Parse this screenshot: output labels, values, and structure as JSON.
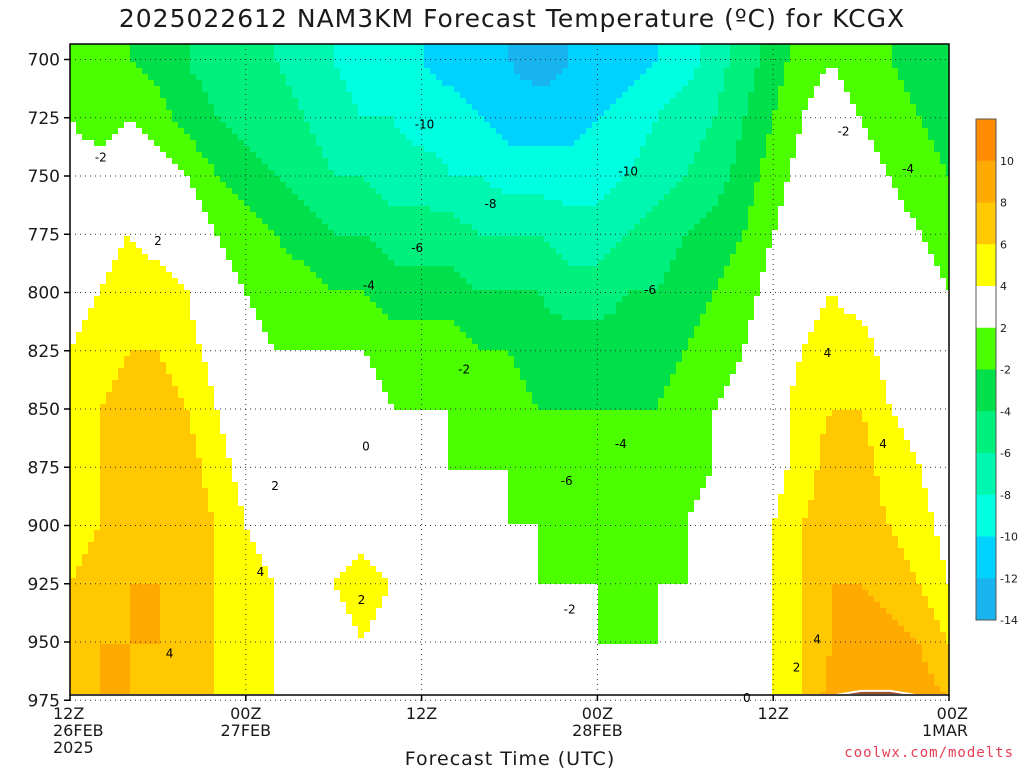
{
  "chart_data": {
    "type": "heatmap",
    "title": "2025022612 NAM3KM Forecast Temperature (ºC) for KCGX",
    "xlabel": "Forecast Time (UTC)",
    "ylabel": "",
    "y_axis": {
      "inverted": true,
      "ylim": [
        988,
        695
      ],
      "ticks": [
        700,
        725,
        750,
        775,
        800,
        825,
        850,
        875,
        900,
        925,
        950,
        975
      ],
      "tick_labels": [
        "700",
        "725",
        "750",
        "775",
        "800",
        "825",
        "850",
        "875",
        "900",
        "925",
        "950",
        "975"
      ]
    },
    "x_axis": {
      "xlim": [
        0,
        36
      ],
      "ticks": [
        {
          "hour": 0,
          "lines": [
            "12Z",
            "26FEB",
            "2025"
          ]
        },
        {
          "hour": 12,
          "lines": [
            "00Z",
            "27FEB"
          ]
        },
        {
          "hour": 24,
          "lines": [
            "12Z"
          ]
        },
        {
          "hour": 36,
          "lines": [
            "00Z",
            "28FEB"
          ]
        },
        {
          "hour": 48,
          "lines": [
            "12Z"
          ]
        },
        {
          "hour": 60,
          "lines": [
            "00Z",
            "1MAR"
          ]
        }
      ]
    },
    "grid": "dotted",
    "colorbar": {
      "placement": "right",
      "levels": [
        14,
        12,
        10,
        8,
        6,
        4,
        2,
        -2,
        -4,
        -6,
        -8,
        -10,
        -12,
        -14
      ],
      "labels": [
        "10",
        "8",
        "6",
        "4",
        "2",
        "-2",
        "-4",
        "-6",
        "-8",
        "-10",
        "-12",
        "-14"
      ],
      "bands": [
        {
          "low": 10,
          "high": 14,
          "color": "#ff8c00"
        },
        {
          "low": 6,
          "high": 10,
          "color": "#ffaa00"
        },
        {
          "low": 4,
          "high": 6,
          "color": "#ffc800"
        },
        {
          "low": 2,
          "high": 4,
          "color": "#ffff00"
        },
        {
          "low": -2,
          "high": 2,
          "color": "#ffffff"
        },
        {
          "low": -4,
          "high": -2,
          "color": "#4cff00"
        },
        {
          "low": -6,
          "high": -4,
          "color": "#00e04a"
        },
        {
          "low": -8,
          "high": -6,
          "color": "#00f07e"
        },
        {
          "low": -10,
          "high": -8,
          "color": "#00f7b0"
        },
        {
          "low": -12,
          "high": -10,
          "color": "#00ffe0"
        },
        {
          "low": -14,
          "high": -12,
          "color": "#00d2ff"
        },
        {
          "low": -18,
          "high": -14,
          "color": "#18b4f0"
        }
      ]
    },
    "temperature_field": {
      "units": "ºC",
      "hours": [
        0,
        2,
        4,
        6,
        8,
        10,
        12,
        14,
        16,
        18,
        20,
        22,
        24,
        26,
        28,
        30,
        32,
        34,
        36,
        38,
        40,
        42,
        44,
        46,
        48,
        50,
        52,
        54,
        56,
        58,
        60
      ],
      "pressures": [
        700,
        725,
        750,
        775,
        800,
        825,
        850,
        875,
        900,
        925,
        950,
        975
      ],
      "values": [
        [
          -3,
          -4,
          -4,
          -5,
          -6,
          -7,
          -8,
          -8,
          -9,
          -10,
          -11,
          -12,
          -12,
          -13,
          -14,
          -14,
          -15,
          -14,
          -14,
          -13,
          -12,
          -11,
          -9,
          -7,
          -5,
          -3,
          -2,
          -3,
          -4,
          -5,
          -6
        ],
        [
          -2,
          -3,
          -2,
          -3,
          -5,
          -6,
          -7,
          -7,
          -8,
          -9,
          -10,
          -10,
          -11,
          -11,
          -12,
          -13,
          -13,
          -13,
          -12,
          -11,
          -10,
          -9,
          -8,
          -6,
          -4,
          -2,
          -1,
          -2,
          -3,
          -4,
          -5
        ],
        [
          -1,
          -1,
          0,
          -1,
          -2,
          -4,
          -5,
          -6,
          -7,
          -8,
          -8,
          -9,
          -9,
          -10,
          -10,
          -11,
          -11,
          -11,
          -11,
          -10,
          -9,
          -8,
          -7,
          -5,
          -3,
          -1,
          0,
          -1,
          -2,
          -3,
          -4
        ],
        [
          0,
          1,
          2,
          1,
          0,
          -2,
          -3,
          -4,
          -5,
          -6,
          -6,
          -7,
          -7,
          -7,
          -8,
          -8,
          -8,
          -9,
          -9,
          -8,
          -7,
          -6,
          -5,
          -4,
          -2,
          0,
          0,
          0,
          -1,
          -2,
          -3
        ],
        [
          1,
          2,
          3,
          3,
          2,
          -1,
          -2,
          -3,
          -3,
          -4,
          -4,
          -5,
          -5,
          -5,
          -6,
          -6,
          -6,
          -7,
          -7,
          -6,
          -6,
          -5,
          -4,
          -3,
          -1,
          1,
          2,
          1,
          0,
          -1,
          -2
        ],
        [
          2,
          3,
          4,
          4,
          3,
          1,
          -1,
          -2,
          -2,
          -2,
          -2,
          -3,
          -3,
          -3,
          -4,
          -4,
          -5,
          -5,
          -5,
          -5,
          -5,
          -4,
          -3,
          -2,
          0,
          2,
          3,
          3,
          1,
          0,
          -1
        ],
        [
          2,
          4,
          5,
          5,
          4,
          2,
          0,
          -1,
          -1,
          -1,
          -1,
          -2,
          -2,
          -2,
          -3,
          -3,
          -4,
          -4,
          -4,
          -4,
          -4,
          -3,
          -2,
          -1,
          1,
          3,
          4,
          4,
          2,
          1,
          -1
        ],
        [
          3,
          4,
          5,
          6,
          5,
          3,
          1,
          0,
          0,
          0,
          0,
          -1,
          -1,
          -2,
          -2,
          -2,
          -3,
          -3,
          -4,
          -4,
          -3,
          -3,
          -2,
          0,
          1,
          3,
          5,
          5,
          3,
          2,
          0
        ],
        [
          3,
          4,
          5,
          6,
          5,
          4,
          2,
          1,
          1,
          1,
          1,
          0,
          0,
          -1,
          -1,
          -2,
          -2,
          -3,
          -3,
          -3,
          -3,
          -2,
          -1,
          0,
          2,
          4,
          5,
          5,
          4,
          3,
          1
        ],
        [
          4,
          5,
          6,
          6,
          5,
          4,
          3,
          2,
          1,
          2,
          3,
          2,
          1,
          0,
          -1,
          -1,
          -2,
          -2,
          -2,
          -3,
          -2,
          -2,
          -1,
          0,
          2,
          4,
          6,
          6,
          5,
          4,
          2
        ],
        [
          5,
          6,
          6,
          6,
          5,
          4,
          3,
          2,
          1,
          1,
          2,
          1,
          0,
          0,
          0,
          -1,
          -1,
          -1,
          -2,
          -2,
          -2,
          -1,
          0,
          1,
          2,
          4,
          6,
          7,
          7,
          6,
          4
        ],
        [
          5,
          6,
          6,
          5,
          4,
          4,
          3,
          2,
          1,
          1,
          1,
          1,
          1,
          0,
          0,
          0,
          0,
          0,
          -1,
          -1,
          -1,
          0,
          0,
          1,
          2,
          4,
          7,
          9,
          8,
          7,
          6
        ]
      ]
    },
    "ground": {
      "color": "#a0522d",
      "hours": [
        0,
        3,
        6,
        9,
        12,
        15,
        18,
        21,
        24,
        27,
        30,
        33,
        36,
        38,
        40,
        42,
        44,
        46,
        48,
        50,
        52,
        54,
        56,
        58,
        60
      ],
      "surface_pressure": [
        980,
        979,
        978,
        978,
        979,
        980,
        980,
        980,
        980,
        981,
        981,
        983,
        984,
        985,
        984,
        983,
        983,
        982,
        980,
        977,
        973,
        971,
        971,
        973,
        975
      ]
    },
    "contour_labels": [
      {
        "text": "-2",
        "hour": 2.1,
        "p": 742
      },
      {
        "text": "-10",
        "hour": 24.2,
        "p": 728
      },
      {
        "text": "-10",
        "hour": 38.1,
        "p": 748
      },
      {
        "text": "-8",
        "hour": 28.7,
        "p": 762
      },
      {
        "text": "-6",
        "hour": 23.7,
        "p": 781
      },
      {
        "text": "-4",
        "hour": 20.4,
        "p": 797
      },
      {
        "text": "-6",
        "hour": 39.6,
        "p": 799
      },
      {
        "text": "-2",
        "hour": 52.8,
        "p": 731
      },
      {
        "text": "-4",
        "hour": 57.2,
        "p": 747
      },
      {
        "text": "2",
        "hour": 6.0,
        "p": 778
      },
      {
        "text": "-2",
        "hour": 26.9,
        "p": 833
      },
      {
        "text": "0",
        "hour": 20.2,
        "p": 866
      },
      {
        "text": "-4",
        "hour": 37.6,
        "p": 865
      },
      {
        "text": "-6",
        "hour": 33.9,
        "p": 881
      },
      {
        "text": "2",
        "hour": 14.0,
        "p": 883
      },
      {
        "text": "4",
        "hour": 13.0,
        "p": 920
      },
      {
        "text": "2",
        "hour": 19.9,
        "p": 932
      },
      {
        "text": "-2",
        "hour": 34.1,
        "p": 936
      },
      {
        "text": "4",
        "hour": 6.8,
        "p": 955
      },
      {
        "text": "4",
        "hour": 51.7,
        "p": 826
      },
      {
        "text": "4",
        "hour": 55.5,
        "p": 865
      },
      {
        "text": "4",
        "hour": 51.0,
        "p": 949
      },
      {
        "text": "2",
        "hour": 49.6,
        "p": 961
      },
      {
        "text": "0",
        "hour": 46.2,
        "p": 974
      }
    ]
  },
  "footer": {
    "credit": "coolwx.com/modelts"
  }
}
